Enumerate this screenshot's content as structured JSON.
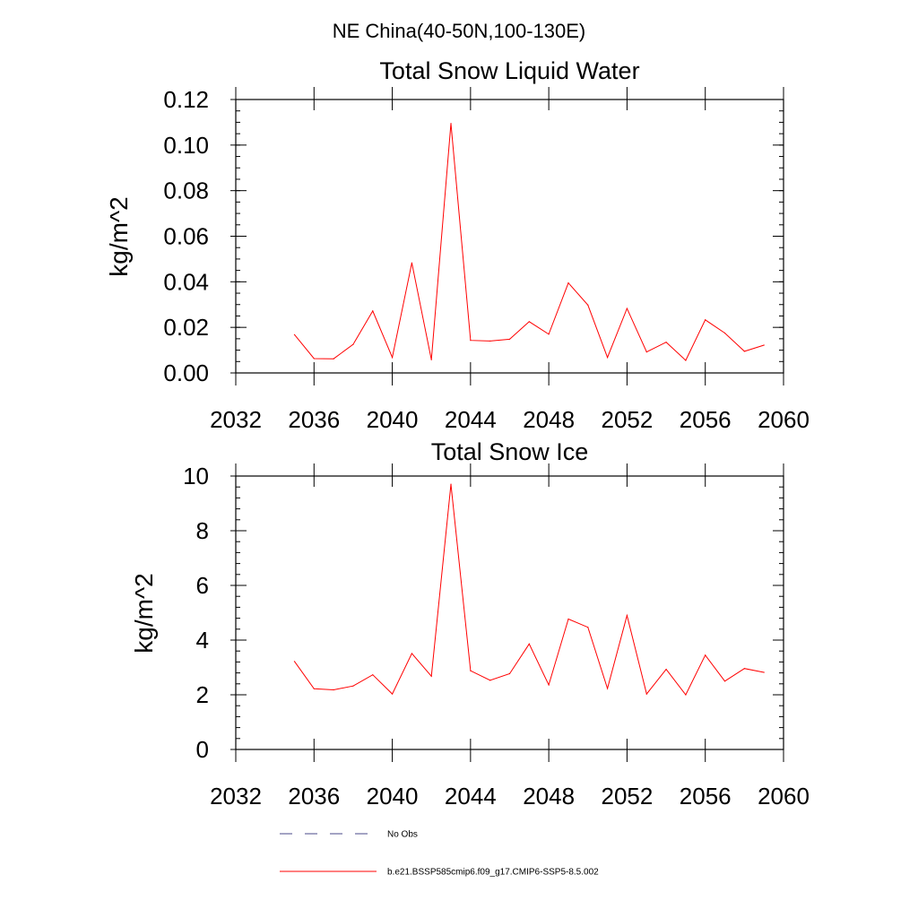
{
  "suptitle": "NE China(40-50N,100-130E)",
  "chart_data": [
    {
      "type": "line",
      "title": "Total Snow Liquid Water",
      "xlabel": "",
      "ylabel": "kg/m^2",
      "xlim": [
        2032,
        2060
      ],
      "ylim": [
        0,
        0.12
      ],
      "xticks": [
        2032,
        2036,
        2040,
        2044,
        2048,
        2052,
        2056,
        2060
      ],
      "xtick_labels": [
        "2032",
        "2036",
        "2040",
        "2044",
        "2048",
        "2052",
        "2056",
        "2060"
      ],
      "yticks": [
        0,
        0.02,
        0.04,
        0.06,
        0.08,
        0.1,
        0.12
      ],
      "ytick_labels": [
        "0.00",
        "0.02",
        "0.04",
        "0.06",
        "0.08",
        "0.10",
        "0.12"
      ],
      "grid": false,
      "x": [
        2035,
        2036,
        2037,
        2038,
        2039,
        2040,
        2041,
        2042,
        2043,
        2044,
        2045,
        2046,
        2047,
        2048,
        2049,
        2050,
        2051,
        2052,
        2053,
        2054,
        2055,
        2056,
        2057,
        2058,
        2059
      ],
      "series": [
        {
          "values": [
            0.0168,
            0.0063,
            0.0062,
            0.0125,
            0.0272,
            0.0068,
            0.0483,
            0.0058,
            0.1095,
            0.0143,
            0.014,
            0.0148,
            0.0225,
            0.017,
            0.0395,
            0.0298,
            0.0068,
            0.0283,
            0.0092,
            0.0135,
            0.0055,
            0.0233,
            0.0175,
            0.0095,
            0.0122
          ],
          "color": "#ff0000"
        }
      ]
    },
    {
      "type": "line",
      "title": "Total Snow Ice",
      "xlabel": "",
      "ylabel": "kg/m^2",
      "xlim": [
        2032,
        2060
      ],
      "ylim": [
        0,
        10
      ],
      "xticks": [
        2032,
        2036,
        2040,
        2044,
        2048,
        2052,
        2056,
        2060
      ],
      "xtick_labels": [
        "2032",
        "2036",
        "2040",
        "2044",
        "2048",
        "2052",
        "2056",
        "2060"
      ],
      "yticks": [
        0,
        2,
        4,
        6,
        8,
        10
      ],
      "ytick_labels": [
        "0",
        "2",
        "4",
        "6",
        "8",
        "10"
      ],
      "grid": false,
      "x": [
        2035,
        2036,
        2037,
        2038,
        2039,
        2040,
        2041,
        2042,
        2043,
        2044,
        2045,
        2046,
        2047,
        2048,
        2049,
        2050,
        2051,
        2052,
        2053,
        2054,
        2055,
        2056,
        2057,
        2058,
        2059
      ],
      "series": [
        {
          "values": [
            3.22,
            2.22,
            2.18,
            2.32,
            2.73,
            2.03,
            3.51,
            2.68,
            9.7,
            2.88,
            2.53,
            2.77,
            3.86,
            2.36,
            4.77,
            4.47,
            2.23,
            4.9,
            2.03,
            2.93,
            2.0,
            3.45,
            2.5,
            2.96,
            2.82
          ],
          "color": "#ff0000"
        }
      ]
    }
  ],
  "legend": {
    "placement": "bottom",
    "entries": [
      {
        "label": "No Obs",
        "color": "#4a4a8a",
        "dash": "dashed"
      },
      {
        "label": "b.e21.BSSP585cmip6.f09_g17.CMIP6-SSP5-8.5.002",
        "color": "#ff0000",
        "dash": "solid"
      }
    ]
  }
}
